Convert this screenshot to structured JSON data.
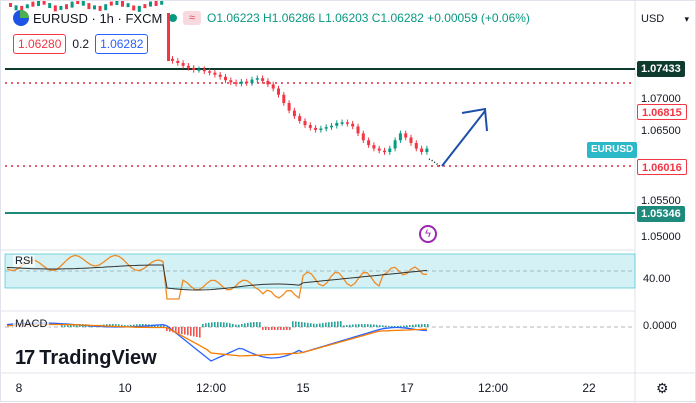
{
  "header": {
    "symbol": "EURUSD · 1h · FXCM",
    "ohlc_text": "O1.06223 H1.06286 L1.06203 C1.06282 +0.00059 (+0.06%)",
    "ohlc_icon": "≈",
    "bid": "1.06280",
    "spread": "0.2",
    "ask": "1.06282"
  },
  "currency_selector": {
    "label": "USD",
    "icon": "chevron-down-icon"
  },
  "price_axis": {
    "labels": [
      "1.07000",
      "1.06500",
      "1.05500",
      "1.05000"
    ],
    "tags": {
      "resistance_top": "1.07433",
      "resistance_mid": "1.06815",
      "support_mid": "1.06016",
      "support_low": "1.05346"
    },
    "symbol_tag": "EURUSD"
  },
  "rsi": {
    "label": "RSI",
    "axis_label": "40.00"
  },
  "macd": {
    "label": "MACD",
    "axis_label": "0.0000"
  },
  "time_axis": {
    "labels": [
      "8",
      "10",
      "12:00",
      "15",
      "17",
      "12:00",
      "22"
    ]
  },
  "branding": {
    "logo_text": "TradingView"
  },
  "colors": {
    "up": "#089981",
    "down": "#f23645",
    "resistance_line": "#0e3b2e",
    "support_line": "#1d8a7c",
    "dotted_line": "#e0263e",
    "arrow": "#1e4fa8",
    "rsi_line": "#f08a24",
    "rsi_ma": "#333333",
    "rsi_band": "#d4f2f5",
    "macd_line": "#2962ff",
    "signal_line": "#f57c00"
  },
  "chart_data": {
    "type": "candlestick",
    "price_axis": [
      "1.07000",
      "1.06500",
      "1.05500",
      "1.05000"
    ],
    "close_path": [
      1.0755,
      1.0752,
      1.0748,
      1.0745,
      1.0742,
      1.0743,
      1.074,
      1.0738,
      1.0735,
      1.0732,
      1.0727,
      1.0724,
      1.0722,
      1.0725,
      1.0723,
      1.0728,
      1.073,
      1.0726,
      1.0721,
      1.0715,
      1.0706,
      1.0694,
      1.0683,
      1.0675,
      1.0668,
      1.0662,
      1.0658,
      1.0655,
      1.0657,
      1.0659,
      1.0661,
      1.0665,
      1.0666,
      1.0664,
      1.066,
      1.065,
      1.064,
      1.0633,
      1.0628,
      1.0625,
      1.0623,
      1.0628,
      1.064,
      1.065,
      1.0644,
      1.0636,
      1.0628,
      1.0623,
      1.0628
    ],
    "levels": [
      1.07433,
      1.06815,
      1.06016,
      1.05346
    ]
  }
}
